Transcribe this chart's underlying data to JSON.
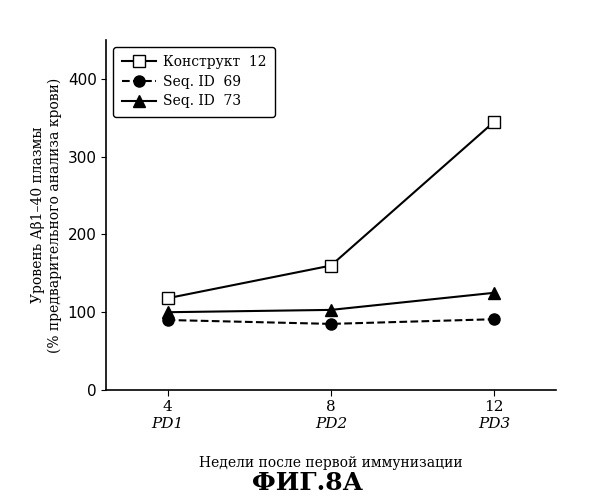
{
  "x": [
    4,
    8,
    12
  ],
  "x_labels": [
    "4",
    "8",
    "12"
  ],
  "x_sublabels": [
    "PD1",
    "PD2",
    "PD3"
  ],
  "series": [
    {
      "label": "Конструкт  12",
      "values": [
        118,
        160,
        345
      ],
      "color": "#000000",
      "linestyle": "-",
      "marker": "s",
      "markerfacecolor": "white",
      "markersize": 8,
      "linewidth": 1.5
    },
    {
      "label": "Seq. ID  69",
      "values": [
        90,
        85,
        91
      ],
      "color": "#000000",
      "linestyle": "--",
      "marker": "o",
      "markerfacecolor": "black",
      "markersize": 8,
      "linewidth": 1.5
    },
    {
      "label": "Seq. ID  73",
      "values": [
        100,
        103,
        125
      ],
      "color": "#000000",
      "linestyle": "-",
      "marker": "^",
      "markerfacecolor": "black",
      "markersize": 8,
      "linewidth": 1.5
    }
  ],
  "ylabel_line1": "Уровень Aβ1–40 плазмы",
  "ylabel_line2": "(% предварительного анализа крови)",
  "xlabel": "Недели после первой иммунизации",
  "title": "ФИГ.8А",
  "ylim": [
    0,
    450
  ],
  "yticks": [
    0,
    100,
    200,
    300,
    400
  ],
  "xlim": [
    2.5,
    13.5
  ],
  "background_color": "#ffffff",
  "legend_fontsize": 10,
  "axis_fontsize": 10,
  "title_fontsize": 18
}
